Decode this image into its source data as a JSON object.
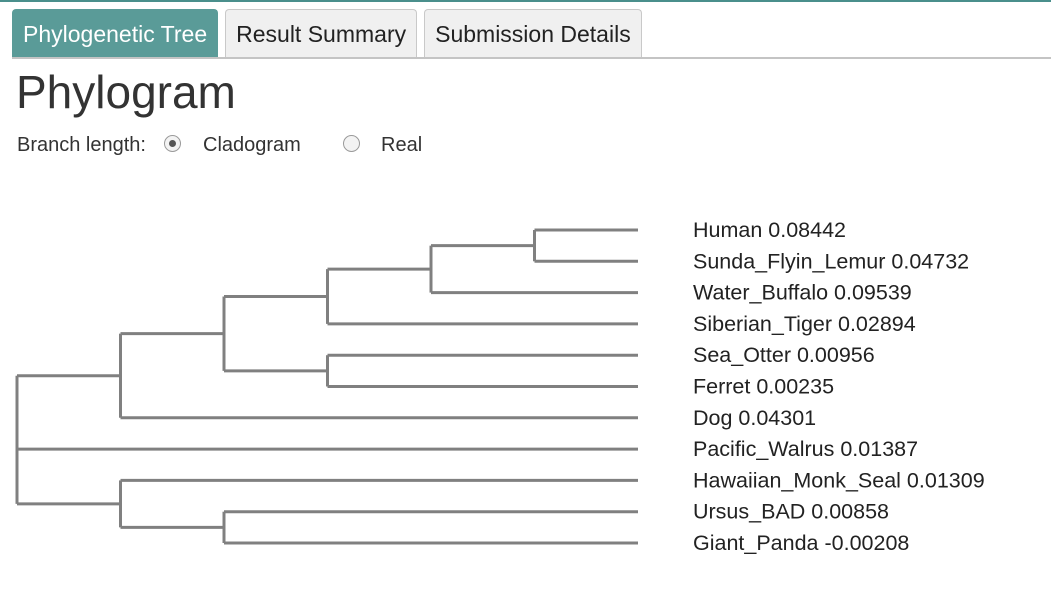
{
  "tabs": [
    {
      "label": "Phylogenetic Tree",
      "active": true
    },
    {
      "label": "Result Summary",
      "active": false
    },
    {
      "label": "Submission Details",
      "active": false
    }
  ],
  "page_title": "Phylogram",
  "branch_length": {
    "label": "Branch length:",
    "options": [
      {
        "label": "Cladogram",
        "selected": true
      },
      {
        "label": "Real",
        "selected": false
      }
    ]
  },
  "tree": {
    "line_color": "#808080",
    "leaves": [
      {
        "name": "Human",
        "length": "0.08442"
      },
      {
        "name": "Sunda_Flyin_Lemur",
        "length": "0.04732"
      },
      {
        "name": "Water_Buffalo",
        "length": "0.09539"
      },
      {
        "name": "Siberian_Tiger",
        "length": "0.02894"
      },
      {
        "name": "Sea_Otter",
        "length": "0.00956"
      },
      {
        "name": "Ferret",
        "length": "0.00235"
      },
      {
        "name": "Dog",
        "length": "0.04301"
      },
      {
        "name": "Pacific_Walrus",
        "length": "0.01387"
      },
      {
        "name": "Hawaiian_Monk_Seal",
        "length": "0.01309"
      },
      {
        "name": "Ursus_BAD",
        "length": "0.00858"
      },
      {
        "name": "Giant_Panda",
        "length": "-0.00208"
      }
    ],
    "topology": [
      [
        [
          [
            [
              [
                "Human",
                "Sunda_Flyin_Lemur"
              ],
              "Water_Buffalo"
            ],
            "Siberian_Tiger"
          ],
          [
            "Sea_Otter",
            "Ferret"
          ]
        ],
        "Dog"
      ],
      "Pacific_Walrus",
      [
        "Hawaiian_Monk_Seal",
        [
          "Ursus_BAD",
          "Giant_Panda"
        ]
      ]
    ]
  },
  "colors": {
    "accent": "#5a9b98",
    "tree_line": "#808080"
  }
}
